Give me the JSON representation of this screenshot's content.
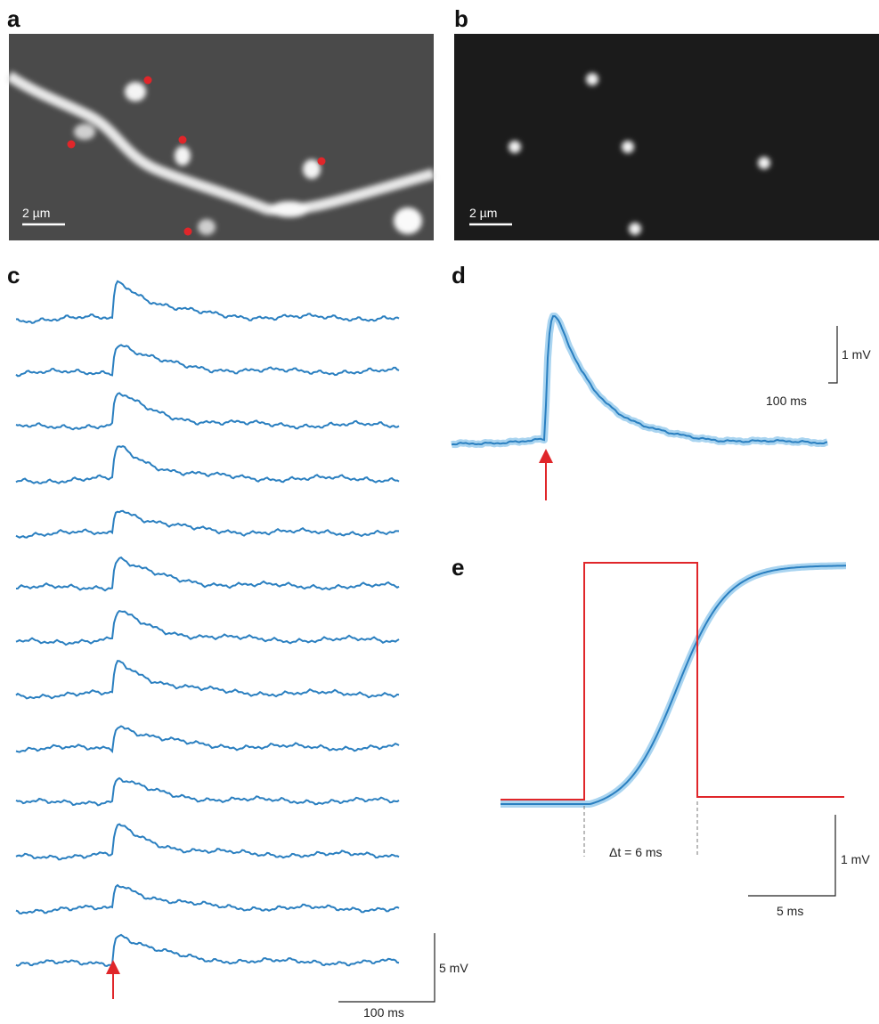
{
  "panels": {
    "a": {
      "label": "a",
      "scale_bar": "2 µm"
    },
    "b": {
      "label": "b",
      "scale_bar": "2 µm"
    },
    "c": {
      "label": "c",
      "scale_y": "5 mV",
      "scale_x": "100 ms"
    },
    "d": {
      "label": "d",
      "scale_y": "1 mV",
      "scale_x": "100 ms"
    },
    "e": {
      "label": "e",
      "delta": "Δt = 6 ms",
      "scale_y": "1 mV",
      "scale_x": "5 ms"
    }
  }
}
